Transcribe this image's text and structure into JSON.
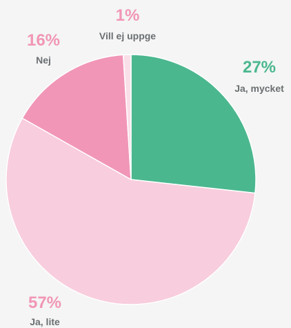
{
  "chart_data": {
    "type": "pie",
    "categories": [
      "Ja, mycket",
      "Ja, lite",
      "Nej",
      "Vill ej uppge"
    ],
    "values": [
      27,
      57,
      16,
      1
    ],
    "value_labels": [
      "27%",
      "57%",
      "16%",
      "1%"
    ],
    "colors": [
      "#4bb78f",
      "#f8cddd",
      "#f196b7",
      "#f9dfe8"
    ],
    "label_colors": [
      "#4bb78f",
      "#f196b7",
      "#f196b7",
      "#f196b7"
    ]
  }
}
